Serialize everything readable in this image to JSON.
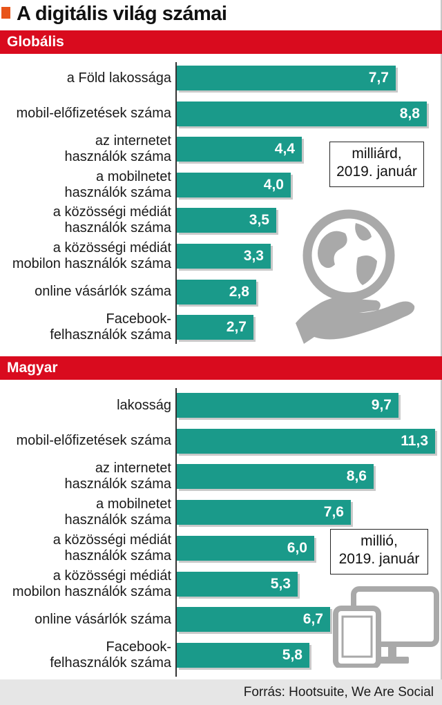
{
  "title": "A digitális világ számai",
  "source": "Forrás: Hootsuite, We Are Social",
  "colors": {
    "bar": "#1a9a8a",
    "section": "#d90b1e",
    "title_square": "#e8541a",
    "icon": "#a9a9a9"
  },
  "chart_data": [
    {
      "type": "bar",
      "orientation": "horizontal",
      "section_title": "Globális",
      "unit_note_line1": "milliárd,",
      "unit_note_line2": "2019. január",
      "icon": "globe-in-hand-icon",
      "categories": [
        [
          "a Föld lakossága"
        ],
        [
          "mobil-előfizetések száma"
        ],
        [
          "az internetet",
          "használók száma"
        ],
        [
          "a mobilnetet",
          "használók száma"
        ],
        [
          "a közösségi médiát",
          "használók száma"
        ],
        [
          "a közösségi médiát",
          "mobilon használók száma"
        ],
        [
          "online vásárlók száma"
        ],
        [
          "Facebook-",
          "felhasználók száma"
        ]
      ],
      "values": [
        7.7,
        8.8,
        4.4,
        4.0,
        3.5,
        3.3,
        2.8,
        2.7
      ],
      "labels": [
        "7,7",
        "8,8",
        "4,4",
        "4,0",
        "3,5",
        "3,3",
        "2,8",
        "2,7"
      ],
      "xlim": [
        0,
        8.8
      ]
    },
    {
      "type": "bar",
      "orientation": "horizontal",
      "section_title": "Magyar",
      "unit_note_line1": "millió,",
      "unit_note_line2": "2019. január",
      "icon": "devices-icon",
      "categories": [
        [
          "lakosság"
        ],
        [
          "mobil-előfizetések száma"
        ],
        [
          "az internetet",
          "használók száma"
        ],
        [
          "a mobilnetet",
          "használók száma"
        ],
        [
          "a közösségi médiát",
          "használók száma"
        ],
        [
          "a közösségi médiát",
          "mobilon használók száma"
        ],
        [
          "online vásárlók száma"
        ],
        [
          "Facebook-",
          "felhasználók száma"
        ]
      ],
      "values": [
        9.7,
        11.3,
        8.6,
        7.6,
        6.0,
        5.3,
        6.7,
        5.8
      ],
      "labels": [
        "9,7",
        "11,3",
        "8,6",
        "7,6",
        "6,0",
        "5,3",
        "6,7",
        "5,8"
      ],
      "xlim": [
        0,
        11.3
      ]
    }
  ]
}
